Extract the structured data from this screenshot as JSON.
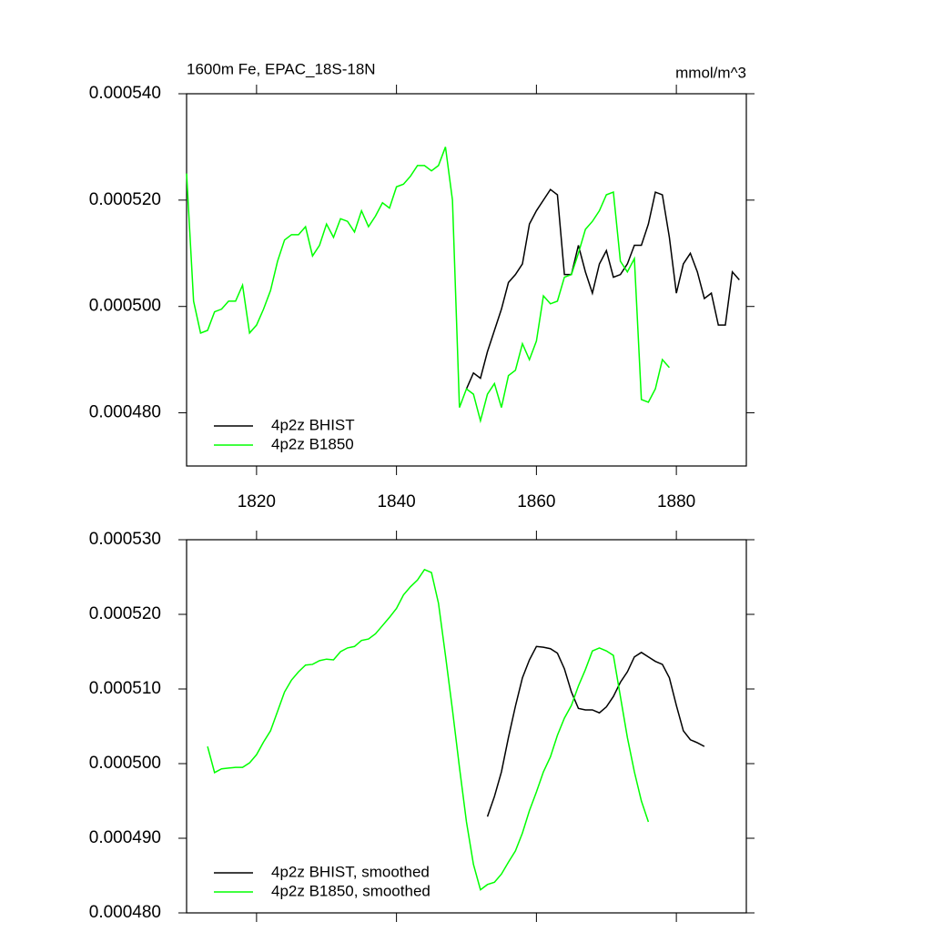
{
  "chart_data": [
    {
      "type": "line",
      "title": "1600m Fe, EPAC_18S-18N",
      "units": "mmol/m^3",
      "xlim": [
        1810,
        1890
      ],
      "xticks": [
        1820,
        1840,
        1860,
        1880
      ],
      "ylim": [
        0.00047,
        0.00054
      ],
      "yticks": [
        {
          "value": 0.00048,
          "label": "0.000480"
        },
        {
          "value": 0.0005,
          "label": "0.000500"
        },
        {
          "value": 0.00052,
          "label": "0.000520"
        },
        {
          "value": 0.00054,
          "label": "0.000540"
        }
      ],
      "legend": "lower left",
      "series": [
        {
          "name": "4p2z BHIST",
          "color": "#000000",
          "x": [
            1850,
            1851,
            1852,
            1853,
            1854,
            1855,
            1856,
            1857,
            1858,
            1859,
            1860,
            1861,
            1862,
            1863,
            1864,
            1865,
            1866,
            1867,
            1868,
            1869,
            1870,
            1871,
            1872,
            1873,
            1874,
            1875,
            1876,
            1877,
            1878,
            1879,
            1880,
            1881,
            1882,
            1883,
            1884,
            1885,
            1886,
            1887,
            1888,
            1889
          ],
          "values": [
            0.0004845,
            0.0004875,
            0.0004865,
            0.0004915,
            0.0004955,
            0.0004995,
            0.0005045,
            0.000506,
            0.000508,
            0.0005155,
            0.000518,
            0.00052,
            0.000522,
            0.000521,
            0.000506,
            0.000506,
            0.0005115,
            0.0005065,
            0.0005025,
            0.000508,
            0.0005105,
            0.0005055,
            0.000506,
            0.000508,
            0.0005115,
            0.0005115,
            0.0005155,
            0.0005215,
            0.000521,
            0.000513,
            0.0005025,
            0.000508,
            0.00051,
            0.0005065,
            0.0005015,
            0.0005025,
            0.0004965,
            0.0004965,
            0.0005065,
            0.000505
          ]
        },
        {
          "name": "4p2z B1850",
          "color": "#00ff00",
          "x": [
            1810,
            1811,
            1812,
            1813,
            1814,
            1815,
            1816,
            1817,
            1818,
            1819,
            1820,
            1821,
            1822,
            1823,
            1824,
            1825,
            1826,
            1827,
            1828,
            1829,
            1830,
            1831,
            1832,
            1833,
            1834,
            1835,
            1836,
            1837,
            1838,
            1839,
            1840,
            1841,
            1842,
            1843,
            1844,
            1845,
            1846,
            1847,
            1848,
            1849,
            1850,
            1851,
            1852,
            1853,
            1854,
            1855,
            1856,
            1857,
            1858,
            1859,
            1860,
            1861,
            1862,
            1863,
            1864,
            1865,
            1866,
            1867,
            1868,
            1869,
            1870,
            1871,
            1872,
            1873,
            1874,
            1875,
            1876,
            1877,
            1878,
            1879
          ],
          "values": [
            0.000525,
            0.000501,
            0.000495,
            0.0004955,
            0.000499,
            0.0004995,
            0.000501,
            0.000501,
            0.000504,
            0.000495,
            0.0004965,
            0.0004995,
            0.000503,
            0.0005085,
            0.0005125,
            0.0005135,
            0.0005135,
            0.000515,
            0.0005095,
            0.0005115,
            0.0005155,
            0.000513,
            0.0005165,
            0.000516,
            0.000514,
            0.000518,
            0.000515,
            0.000517,
            0.0005195,
            0.0005185,
            0.0005225,
            0.000523,
            0.0005245,
            0.0005265,
            0.0005265,
            0.0005255,
            0.0005265,
            0.00053,
            0.00052,
            0.000481,
            0.0004845,
            0.0004835,
            0.0004785,
            0.0004835,
            0.0004855,
            0.000481,
            0.000487,
            0.000488,
            0.000493,
            0.00049,
            0.0004935,
            0.000502,
            0.0005005,
            0.000501,
            0.0005055,
            0.000506,
            0.00051,
            0.0005145,
            0.000516,
            0.000518,
            0.000521,
            0.0005215,
            0.0005085,
            0.0005065,
            0.000509,
            0.0004825,
            0.000482,
            0.0004845,
            0.00049,
            0.0004885
          ]
        }
      ]
    },
    {
      "type": "line",
      "xlim": [
        1810,
        1890
      ],
      "ylim": [
        0.00048,
        0.00053
      ],
      "yticks": [
        {
          "value": 0.00048,
          "label": "0.000480"
        },
        {
          "value": 0.00049,
          "label": "0.000490"
        },
        {
          "value": 0.0005,
          "label": "0.000500"
        },
        {
          "value": 0.00051,
          "label": "0.000510"
        },
        {
          "value": 0.00052,
          "label": "0.000520"
        },
        {
          "value": 0.00053,
          "label": "0.000530"
        }
      ],
      "legend": "lower left",
      "series": [
        {
          "name": "4p2z BHIST, smoothed",
          "color": "#000000",
          "x": [
            1853,
            1854,
            1855,
            1856,
            1857,
            1858,
            1859,
            1860,
            1861,
            1862,
            1863,
            1864,
            1865,
            1866,
            1867,
            1868,
            1869,
            1870,
            1871,
            1872,
            1873,
            1874,
            1875,
            1876,
            1877,
            1878,
            1879,
            1880,
            1881,
            1882,
            1883,
            1884
          ],
          "values": [
            0.0004929,
            0.0004956,
            0.0004989,
            0.0005035,
            0.0005077,
            0.0005115,
            0.0005139,
            0.0005157,
            0.0005156,
            0.0005154,
            0.0005148,
            0.0005127,
            0.0005096,
            0.0005074,
            0.0005072,
            0.0005072,
            0.0005068,
            0.0005076,
            0.000509,
            0.0005109,
            0.0005123,
            0.0005143,
            0.0005149,
            0.0005143,
            0.0005137,
            0.0005133,
            0.0005115,
            0.0005078,
            0.0005044,
            0.0005032,
            0.0005028,
            0.0005023
          ]
        },
        {
          "name": "4p2z B1850, smoothed",
          "color": "#00ff00",
          "x": [
            1813,
            1814,
            1815,
            1816,
            1817,
            1818,
            1819,
            1820,
            1821,
            1822,
            1823,
            1824,
            1825,
            1826,
            1827,
            1828,
            1829,
            1830,
            1831,
            1832,
            1833,
            1834,
            1835,
            1836,
            1837,
            1838,
            1839,
            1840,
            1841,
            1842,
            1843,
            1844,
            1845,
            1846,
            1847,
            1848,
            1849,
            1850,
            1851,
            1852,
            1853,
            1854,
            1855,
            1856,
            1857,
            1858,
            1859,
            1860,
            1861,
            1862,
            1863,
            1864,
            1865,
            1866,
            1867,
            1868,
            1869,
            1870,
            1871,
            1872,
            1873,
            1874,
            1875,
            1876
          ],
          "values": [
            0.0005023,
            0.0004988,
            0.0004993,
            0.0004994,
            0.0004995,
            0.0004995,
            0.0005001,
            0.0005012,
            0.0005029,
            0.0005044,
            0.000507,
            0.0005096,
            0.0005112,
            0.0005123,
            0.0005132,
            0.0005133,
            0.0005138,
            0.000514,
            0.0005139,
            0.000515,
            0.0005155,
            0.0005157,
            0.0005165,
            0.0005167,
            0.0005174,
            0.0005185,
            0.0005196,
            0.0005208,
            0.0005226,
            0.0005237,
            0.0005246,
            0.000526,
            0.0005256,
            0.0005215,
            0.0005145,
            0.0005072,
            0.0004995,
            0.0004922,
            0.0004865,
            0.0004831,
            0.0004838,
            0.0004841,
            0.0004852,
            0.0004868,
            0.0004883,
            0.0004907,
            0.0004937,
            0.0004962,
            0.0004989,
            0.0005009,
            0.0005038,
            0.0005061,
            0.0005078,
            0.0005104,
            0.0005126,
            0.0005151,
            0.0005155,
            0.0005151,
            0.0005145,
            0.000509,
            0.0005035,
            0.0004989,
            0.000495,
            0.0004922
          ]
        }
      ]
    }
  ]
}
